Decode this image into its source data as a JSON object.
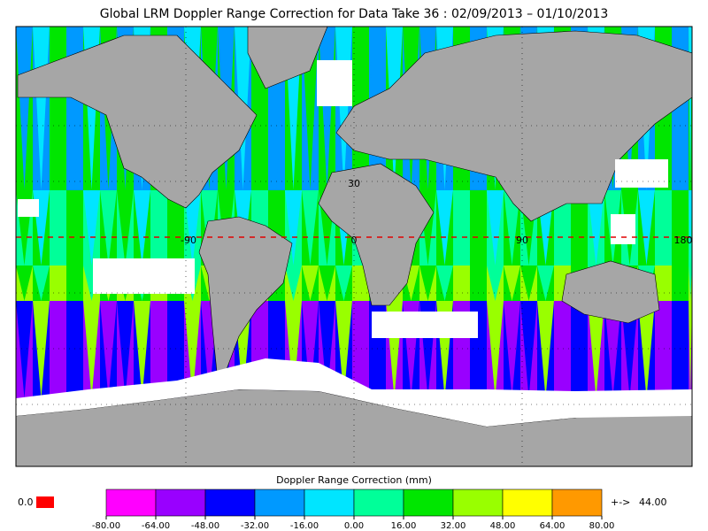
{
  "title": "Global LRM Doppler Range Correction for Data Take 36 : 02/09/2013 – 01/10/2013",
  "map": {
    "labels": [
      "30",
      "-90",
      "0",
      "90",
      "180"
    ]
  },
  "colorbar": {
    "title": "Doppler Range Correction (mm)",
    "colors": [
      "#ff00ff",
      "#9900ff",
      "#0000ff",
      "#0099ff",
      "#00e5ff",
      "#00ff99",
      "#00e600",
      "#99ff00",
      "#ffff00",
      "#ff9900"
    ],
    "ticks": [
      {
        "value": -80,
        "label": "-80.00"
      },
      {
        "value": -64,
        "label": "-64.00"
      },
      {
        "value": -48,
        "label": "-48.00"
      },
      {
        "value": -32,
        "label": "-32.00"
      },
      {
        "value": -16,
        "label": "-16.00"
      },
      {
        "value": 0,
        "label": "0.00"
      },
      {
        "value": 16,
        "label": "16.00"
      },
      {
        "value": 32,
        "label": "32.00"
      },
      {
        "value": 48,
        "label": "48.00"
      },
      {
        "value": 64,
        "label": "64.00"
      },
      {
        "value": 80,
        "label": "80.00"
      }
    ],
    "under_label": "0.0",
    "under_color": "#ff0000",
    "over_arrow": "+->",
    "over_label": "44.00",
    "over_color": "#ff9900"
  }
}
